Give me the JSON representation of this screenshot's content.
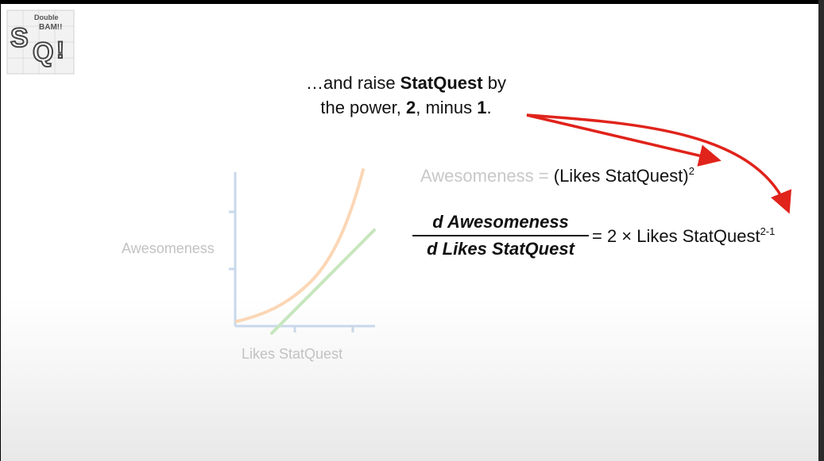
{
  "logo": {
    "line1": "Double",
    "line2": "BAM!!",
    "main": "SQ!"
  },
  "caption": {
    "part1": "…and raise ",
    "bold1": "StatQuest",
    "part2": " by",
    "part3": "the power, ",
    "bold2": "2",
    "part4": ", minus ",
    "bold3": "1",
    "part5": "."
  },
  "graph": {
    "y_label": "Awesomeness",
    "x_label": "Likes StatQuest",
    "colors": {
      "axis": "#c8d8ea",
      "curve": "#fbd7b6",
      "tangent": "#c7e6be"
    }
  },
  "equation1": {
    "lhs": "Awesomeness",
    "equals": " = ",
    "rhs": "(Likes StatQuest)",
    "exponent": "2"
  },
  "equation2": {
    "numerator": "d Awesomeness",
    "denominator": "d Likes StatQuest",
    "rhs": "= 2 × Likes StatQuest",
    "exponent": "2-1"
  },
  "colors": {
    "arrow": "#e0231b"
  }
}
